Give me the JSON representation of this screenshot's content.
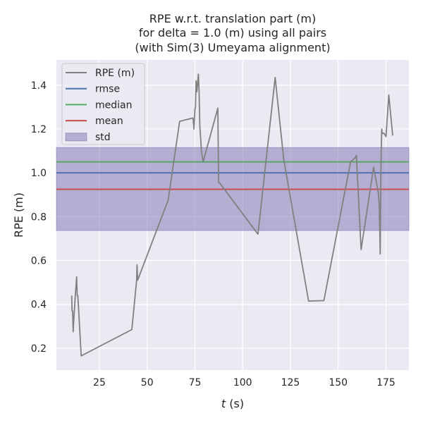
{
  "chart_data": {
    "type": "line",
    "title_lines": [
      "RPE w.r.t. translation part (m)",
      "for delta = 1.0 (m) using all pairs",
      "(with Sim(3) Umeyama alignment)"
    ],
    "xlabel_italic": "t",
    "xlabel_rest": " (s)",
    "ylabel": "RPE (m)",
    "xlim": [
      2.5,
      187
    ],
    "ylim": [
      0.1,
      1.515
    ],
    "x_ticks": [
      25,
      50,
      75,
      100,
      125,
      150,
      175
    ],
    "y_ticks": [
      0.2,
      0.4,
      0.6,
      0.8,
      1.0,
      1.2,
      1.4
    ],
    "grid": true,
    "legend_position": "top-left",
    "colors": {
      "background": "#eaeaf2",
      "grid": "#ffffff",
      "rpe": "#808080",
      "rmse": "#4c72b0",
      "median": "#55a868",
      "mean": "#c44e52",
      "std": "#8172b2"
    },
    "series": [
      {
        "name": "RPE (m)",
        "x": [
          10.5,
          10.7,
          11.0,
          11.3,
          11.6,
          12.4,
          13.1,
          13.4,
          13.7,
          15.5,
          42.0,
          44.5,
          44.7,
          45.0,
          61.0,
          67.0,
          74.0,
          74.5,
          75.0,
          75.3,
          75.6,
          76.0,
          76.4,
          76.8,
          77.2,
          77.6,
          78.0,
          78.4,
          79.3,
          87.0,
          87.4,
          87.8,
          108.0,
          117.0,
          121.5,
          134.5,
          142.5,
          156.5,
          159.0,
          159.5,
          162.0,
          168.5,
          171.0,
          171.5,
          172.0,
          172.3,
          172.5,
          172.8,
          173.0,
          174.0,
          175.0,
          176.5,
          178.5
        ],
        "y": [
          0.44,
          0.37,
          0.37,
          0.275,
          0.33,
          0.44,
          0.525,
          0.44,
          0.44,
          0.165,
          0.285,
          0.51,
          0.58,
          0.51,
          0.875,
          1.235,
          1.25,
          1.2,
          1.29,
          1.3,
          1.42,
          1.37,
          1.41,
          1.45,
          1.37,
          1.21,
          1.16,
          1.1,
          1.05,
          1.295,
          0.955,
          0.955,
          0.72,
          1.435,
          1.06,
          0.415,
          0.417,
          1.05,
          1.07,
          1.08,
          0.65,
          1.025,
          0.91,
          0.85,
          0.63,
          0.98,
          1.1,
          1.2,
          1.18,
          1.18,
          1.165,
          1.355,
          1.17
        ]
      }
    ],
    "stats": {
      "rmse": 1.0,
      "median": 1.05,
      "mean": 0.925,
      "std_band": [
        0.737,
        1.115
      ]
    },
    "legend": [
      {
        "label": "RPE (m)",
        "kind": "line",
        "color_key": "rpe"
      },
      {
        "label": "rmse",
        "kind": "line",
        "color_key": "rmse"
      },
      {
        "label": "median",
        "kind": "line",
        "color_key": "median"
      },
      {
        "label": "mean",
        "kind": "line",
        "color_key": "mean"
      },
      {
        "label": "std",
        "kind": "patch",
        "color_key": "std"
      }
    ]
  }
}
